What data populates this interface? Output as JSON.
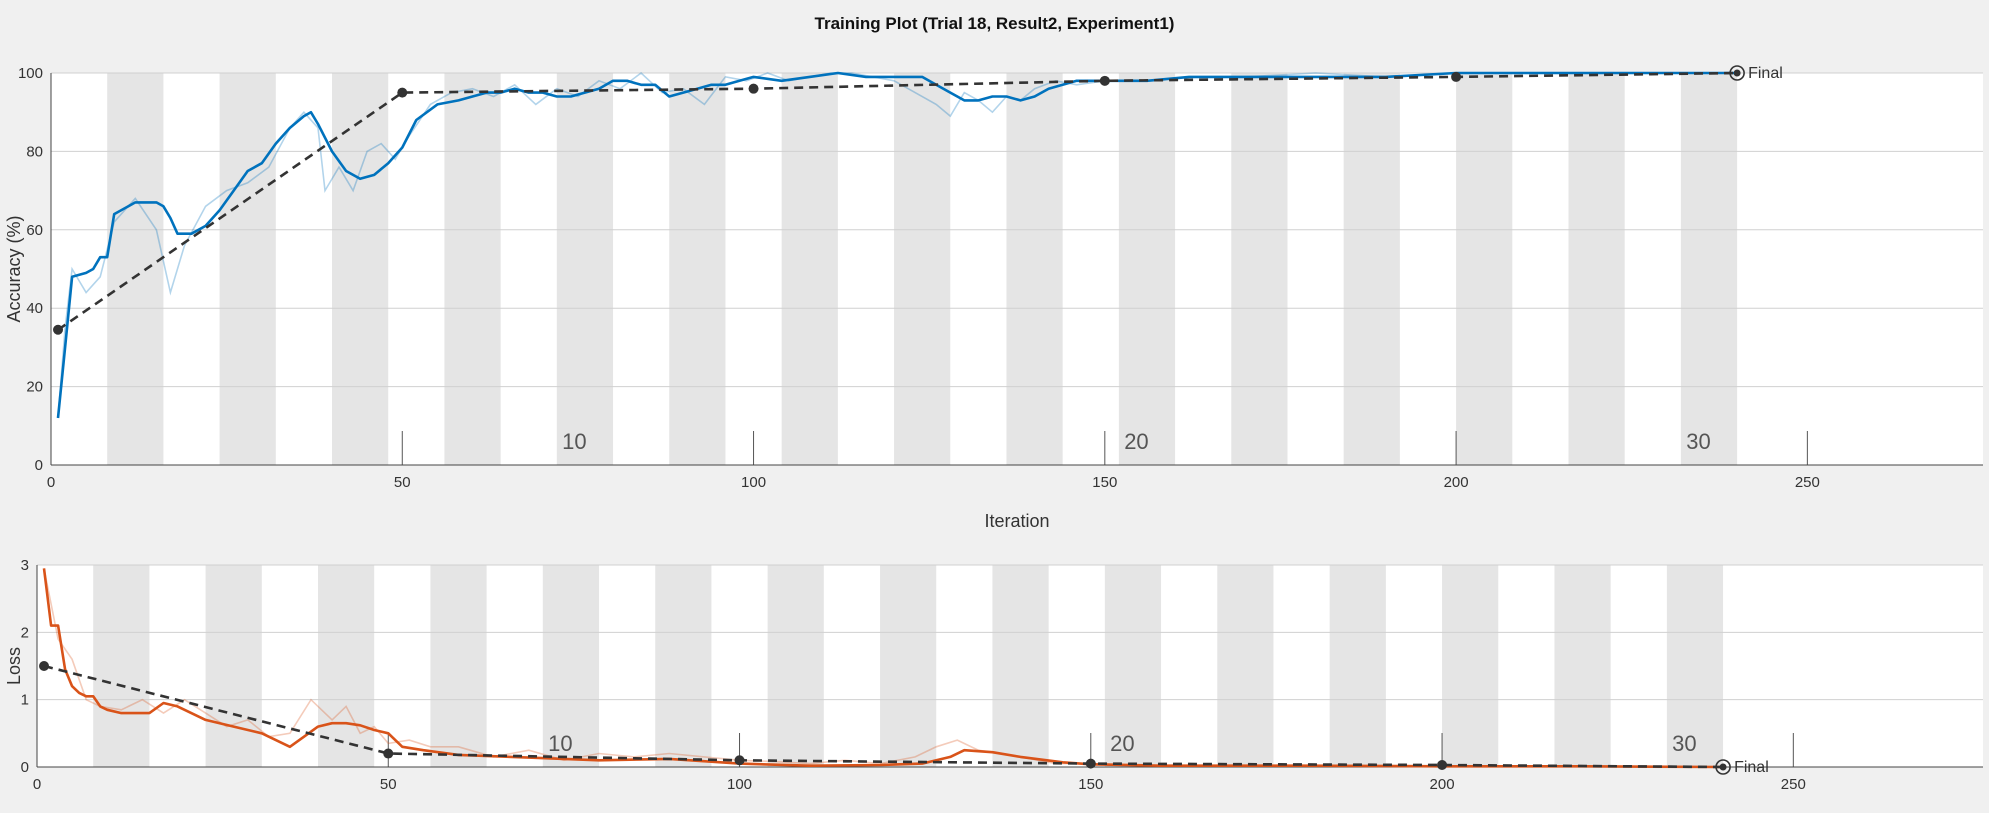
{
  "title": "Training Plot (Trial 18, Result2, Experiment1)",
  "final_label": "Final",
  "colors": {
    "accuracy": "#0072BD",
    "loss": "#D95319",
    "validation": "#333333",
    "epoch_band": "#e5e5e5"
  },
  "chart_data": [
    {
      "type": "line",
      "ylabel": "Accuracy (%)",
      "xlabel": "Iteration",
      "xlim": [
        0,
        275
      ],
      "ylim": [
        0,
        100
      ],
      "x_ticks": [
        0,
        50,
        100,
        150,
        200,
        250
      ],
      "y_ticks": [
        0,
        20,
        40,
        60,
        80,
        100
      ],
      "epoch_labels": [
        {
          "epoch": 10,
          "x": 74.5
        },
        {
          "epoch": 20,
          "x": 154.5
        },
        {
          "epoch": 30,
          "x": 234.5
        }
      ],
      "epoch_boundaries": [
        0,
        8,
        16,
        24,
        32,
        40,
        48,
        56,
        64,
        72,
        80,
        88,
        96,
        104,
        112,
        120,
        128,
        136,
        144,
        152,
        160,
        168,
        176,
        184,
        192,
        200,
        208,
        216,
        224,
        232,
        240
      ],
      "grid": true,
      "series": [
        {
          "role": "training_smoothed",
          "x": [
            1,
            2,
            3,
            5,
            6,
            7,
            8,
            9,
            12,
            14,
            15,
            16,
            17,
            18,
            20,
            22,
            24,
            26,
            28,
            30,
            32,
            34,
            36,
            37,
            38,
            40,
            42,
            44,
            46,
            48,
            50,
            52,
            55,
            58,
            60,
            62,
            64,
            66,
            68,
            70,
            72,
            74,
            76,
            78,
            80,
            82,
            84,
            86,
            88,
            90,
            92,
            94,
            96,
            98,
            100,
            104,
            108,
            112,
            116,
            120,
            124,
            126,
            128,
            130,
            132,
            134,
            136,
            138,
            140,
            142,
            146,
            150,
            156,
            162,
            170,
            180,
            190,
            200,
            210,
            220,
            230,
            240
          ],
          "y": [
            12,
            30,
            48,
            49,
            50,
            53,
            53,
            64,
            67,
            67,
            67,
            66,
            63,
            59,
            59,
            61,
            65,
            70,
            75,
            77,
            82,
            86,
            89,
            90,
            87,
            80,
            75,
            73,
            74,
            77,
            81,
            88,
            92,
            93,
            94,
            95,
            95,
            96,
            95,
            95,
            94,
            94,
            95,
            96,
            98,
            98,
            97,
            97,
            94,
            95,
            96,
            97,
            97,
            98,
            99,
            98,
            99,
            100,
            99,
            99,
            99,
            97,
            95,
            93,
            93,
            94,
            94,
            93,
            94,
            96,
            98,
            98,
            98,
            99,
            99,
            99,
            99,
            100,
            100,
            100,
            100,
            100
          ]
        },
        {
          "role": "training_raw",
          "x": [
            1,
            2,
            3,
            5,
            7,
            9,
            12,
            15,
            17,
            19,
            22,
            25,
            28,
            31,
            34,
            36,
            38,
            39,
            41,
            43,
            45,
            47,
            49,
            51,
            54,
            57,
            60,
            63,
            66,
            69,
            72,
            75,
            78,
            81,
            84,
            87,
            90,
            93,
            96,
            99,
            102,
            105,
            108,
            111,
            114,
            117,
            120,
            123,
            126,
            128,
            130,
            132,
            134,
            136,
            138,
            140,
            143,
            146,
            150,
            156,
            162,
            170,
            180,
            190,
            200,
            210,
            220,
            230,
            240
          ],
          "y": [
            12,
            35,
            50,
            44,
            48,
            62,
            68,
            60,
            44,
            56,
            66,
            70,
            72,
            76,
            86,
            90,
            86,
            70,
            76,
            70,
            80,
            82,
            78,
            84,
            92,
            95,
            96,
            94,
            97,
            92,
            96,
            94,
            98,
            96,
            100,
            95,
            96,
            92,
            99,
            98,
            100,
            98,
            99,
            100,
            100,
            99,
            98,
            95,
            92,
            89,
            95,
            93,
            90,
            94,
            93,
            96,
            98,
            97,
            98,
            98,
            99,
            99,
            100,
            99,
            100,
            100,
            100,
            100,
            100
          ]
        },
        {
          "role": "validation",
          "x": [
            1,
            50,
            100,
            150,
            200,
            240
          ],
          "y": [
            34.5,
            95,
            96,
            98,
            99,
            100
          ]
        }
      ]
    },
    {
      "type": "line",
      "ylabel": "Loss",
      "xlabel": "",
      "xlim": [
        0,
        277
      ],
      "ylim": [
        0,
        3
      ],
      "x_ticks": [
        0,
        50,
        100,
        150,
        200,
        250
      ],
      "y_ticks": [
        0,
        1,
        2,
        3
      ],
      "epoch_labels": [
        {
          "epoch": 10,
          "x": 74.5
        },
        {
          "epoch": 20,
          "x": 154.5
        },
        {
          "epoch": 30,
          "x": 234.5
        }
      ],
      "epoch_boundaries": [
        0,
        8,
        16,
        24,
        32,
        40,
        48,
        56,
        64,
        72,
        80,
        88,
        96,
        104,
        112,
        120,
        128,
        136,
        144,
        152,
        160,
        168,
        176,
        184,
        192,
        200,
        208,
        216,
        224,
        232,
        240
      ],
      "grid": true,
      "series": [
        {
          "role": "training_smoothed",
          "x": [
            1,
            2,
            3,
            4,
            5,
            6,
            7,
            8,
            9,
            10,
            12,
            14,
            16,
            18,
            20,
            24,
            28,
            32,
            36,
            38,
            40,
            42,
            44,
            46,
            48,
            50,
            52,
            55,
            60,
            70,
            80,
            90,
            100,
            110,
            120,
            126,
            130,
            132,
            136,
            140,
            146,
            150,
            160,
            180,
            200,
            220,
            240
          ],
          "y": [
            2.95,
            2.1,
            2.1,
            1.45,
            1.2,
            1.1,
            1.05,
            1.05,
            0.9,
            0.85,
            0.8,
            0.8,
            0.8,
            0.95,
            0.9,
            0.7,
            0.6,
            0.5,
            0.3,
            0.45,
            0.6,
            0.65,
            0.65,
            0.62,
            0.55,
            0.5,
            0.3,
            0.25,
            0.18,
            0.14,
            0.1,
            0.12,
            0.05,
            0.02,
            0.03,
            0.05,
            0.15,
            0.25,
            0.22,
            0.15,
            0.07,
            0.04,
            0.02,
            0.02,
            0.01,
            0.01,
            0.0
          ]
        },
        {
          "role": "training_raw",
          "x": [
            1,
            3,
            5,
            7,
            9,
            12,
            15,
            18,
            21,
            24,
            27,
            30,
            33,
            36,
            39,
            42,
            44,
            46,
            48,
            50,
            53,
            56,
            60,
            65,
            70,
            75,
            80,
            85,
            90,
            95,
            100,
            105,
            110,
            115,
            120,
            125,
            128,
            131,
            134,
            137,
            140,
            145,
            150,
            160,
            180,
            200,
            220,
            240
          ],
          "y": [
            2.95,
            1.9,
            1.6,
            1.0,
            0.9,
            0.85,
            1.0,
            0.8,
            1.0,
            0.8,
            0.6,
            0.7,
            0.45,
            0.5,
            1.0,
            0.7,
            0.9,
            0.5,
            0.6,
            0.35,
            0.4,
            0.3,
            0.3,
            0.15,
            0.25,
            0.1,
            0.2,
            0.15,
            0.2,
            0.15,
            0.1,
            0.08,
            0.05,
            0.1,
            0.05,
            0.15,
            0.3,
            0.4,
            0.25,
            0.2,
            0.15,
            0.05,
            0.05,
            0.02,
            0.02,
            0.01,
            0.01,
            0.0
          ]
        },
        {
          "role": "validation",
          "x": [
            1,
            50,
            100,
            150,
            200,
            240
          ],
          "y": [
            1.5,
            0.2,
            0.1,
            0.05,
            0.03,
            0.0
          ]
        }
      ]
    }
  ]
}
